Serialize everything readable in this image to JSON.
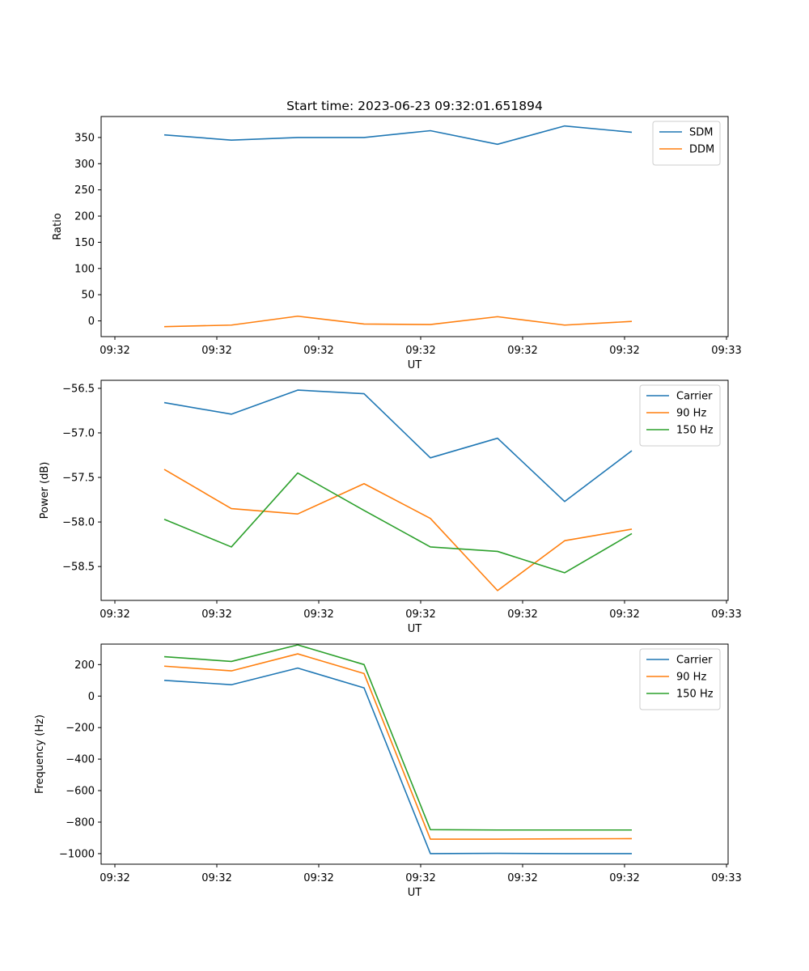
{
  "chart_data": [
    {
      "type": "line",
      "title": "Start time: 2023-06-23 09:32:01.651894",
      "xlabel": "UT",
      "ylabel": "Ratio",
      "x_ticks": [
        "09:32",
        "09:32",
        "09:32",
        "09:32",
        "09:32",
        "09:32",
        "09:33"
      ],
      "y_ticks": [
        0,
        50,
        100,
        150,
        200,
        250,
        300,
        350
      ],
      "ylim": [
        -30,
        390
      ],
      "legend": "top-right",
      "grid": false,
      "series": [
        {
          "name": "SDM",
          "color": "#1f77b4",
          "values": [
            355,
            345,
            350,
            350,
            363,
            337,
            372,
            360
          ]
        },
        {
          "name": "DDM",
          "color": "#ff7f0e",
          "values": [
            -11,
            -8,
            9,
            -6,
            -7,
            8,
            -8,
            -1
          ]
        }
      ]
    },
    {
      "type": "line",
      "title": "",
      "xlabel": "UT",
      "ylabel": "Power (dB)",
      "x_ticks": [
        "09:32",
        "09:32",
        "09:32",
        "09:32",
        "09:32",
        "09:32",
        "09:33"
      ],
      "y_ticks": [
        -58.5,
        -58.0,
        -57.5,
        -57.0,
        -56.5
      ],
      "y_tick_labels": [
        "−58.5",
        "−58.0",
        "−57.5",
        "−57.0",
        "−56.5"
      ],
      "ylim": [
        -58.88,
        -56.41
      ],
      "legend": "top-right",
      "grid": false,
      "series": [
        {
          "name": "Carrier",
          "color": "#1f77b4",
          "values": [
            -56.66,
            -56.79,
            -56.52,
            -56.56,
            -57.28,
            -57.06,
            -57.77,
            -57.2
          ]
        },
        {
          "name": "90 Hz",
          "color": "#ff7f0e",
          "values": [
            -57.41,
            -57.85,
            -57.91,
            -57.57,
            -57.96,
            -58.77,
            -58.21,
            -58.08
          ]
        },
        {
          "name": "150 Hz",
          "color": "#2ca02c",
          "values": [
            -57.97,
            -58.28,
            -57.45,
            -57.87,
            -58.28,
            -58.33,
            -58.57,
            -58.13
          ]
        }
      ]
    },
    {
      "type": "line",
      "title": "",
      "xlabel": "UT",
      "ylabel": "Frequency (Hz)",
      "x_ticks": [
        "09:32",
        "09:32",
        "09:32",
        "09:32",
        "09:32",
        "09:32",
        "09:33"
      ],
      "y_ticks": [
        -1000,
        -800,
        -600,
        -400,
        -200,
        0,
        200
      ],
      "y_tick_labels": [
        "−1000",
        "−800",
        "−600",
        "−400",
        "−200",
        "0",
        "200"
      ],
      "ylim": [
        -1067,
        330
      ],
      "legend": "top-right",
      "grid": false,
      "series": [
        {
          "name": "Carrier",
          "color": "#1f77b4",
          "values": [
            100,
            72,
            178,
            52,
            -1000,
            -998,
            -1000,
            -1000
          ]
        },
        {
          "name": "90 Hz",
          "color": "#ff7f0e",
          "values": [
            190,
            160,
            268,
            143,
            -908,
            -908,
            -906,
            -905
          ]
        },
        {
          "name": "150 Hz",
          "color": "#2ca02c",
          "values": [
            250,
            220,
            325,
            200,
            -848,
            -850,
            -850,
            -850
          ]
        }
      ]
    }
  ]
}
